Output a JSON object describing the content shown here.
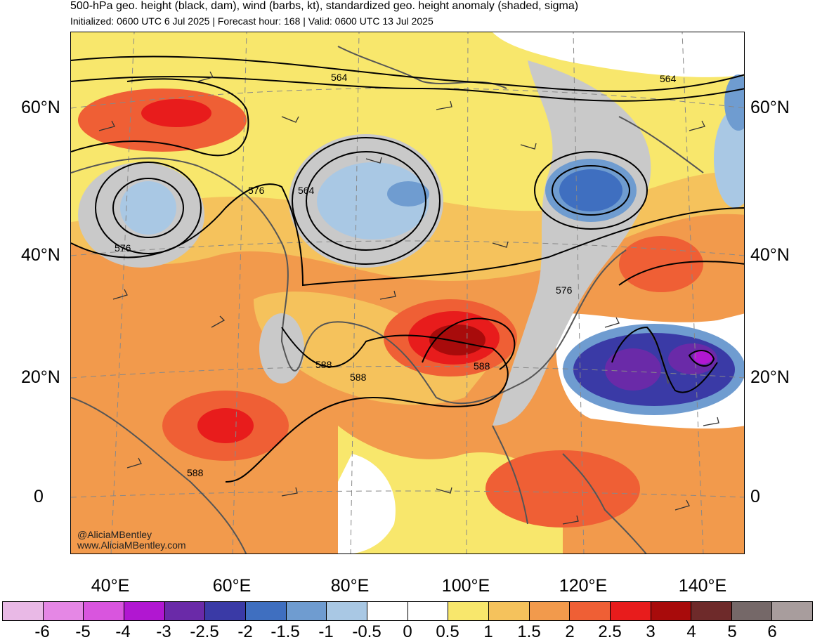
{
  "header": {
    "title": "500-hPa geo. height (black, dam), wind (barbs, kt), standardized geo. height anomaly (shaded, sigma)",
    "subtitle": "Initialized: 0600 UTC 6 Jul 2025 | Forecast hour: 168 | Valid: 0600 UTC 13 Jul 2025"
  },
  "map": {
    "lat_labels": {
      "n60": "60°N",
      "n40": "40°N",
      "n20": "20°N",
      "eq": "0"
    },
    "lon_labels": {
      "e40": "40°E",
      "e60": "60°E",
      "e80": "80°E",
      "e100": "100°E",
      "e120": "120°E",
      "e140": "140°E"
    },
    "contour_labels": {
      "c564_a": "564",
      "c564_b": "564",
      "c564_c": "564",
      "c576_a": "576",
      "c576_b": "576",
      "c576_c": "576",
      "c588_a": "588",
      "c588_b": "588",
      "c588_c": "588",
      "c588_d": "588"
    },
    "credit_handle": "@AliciaMBentley",
    "credit_url": "www.AliciaMBentley.com"
  },
  "colorbar": {
    "colors": [
      "#e9b9e6",
      "#e587e5",
      "#d955de",
      "#b117d1",
      "#6a2aa8",
      "#3a3aa6",
      "#3f6fc0",
      "#6f9cd0",
      "#a9c8e4",
      "#ffffff",
      "#ffffff",
      "#f8e76c",
      "#f5c25c",
      "#f29a4c",
      "#ef5f35",
      "#e81c1c",
      "#a80b0b",
      "#6e2a2a",
      "#756868",
      "#a89d9d"
    ],
    "labels": {
      "l0": "-6",
      "l1": "-5",
      "l2": "-4",
      "l3": "-3",
      "l4": "-2.5",
      "l5": "-2",
      "l6": "-1.5",
      "l7": "-1",
      "l8": "-0.5",
      "l9": "0",
      "l10": "0.5",
      "l11": "1",
      "l12": "1.5",
      "l13": "2",
      "l14": "2.5",
      "l15": "3",
      "l16": "4",
      "l17": "5",
      "l18": "6"
    }
  }
}
